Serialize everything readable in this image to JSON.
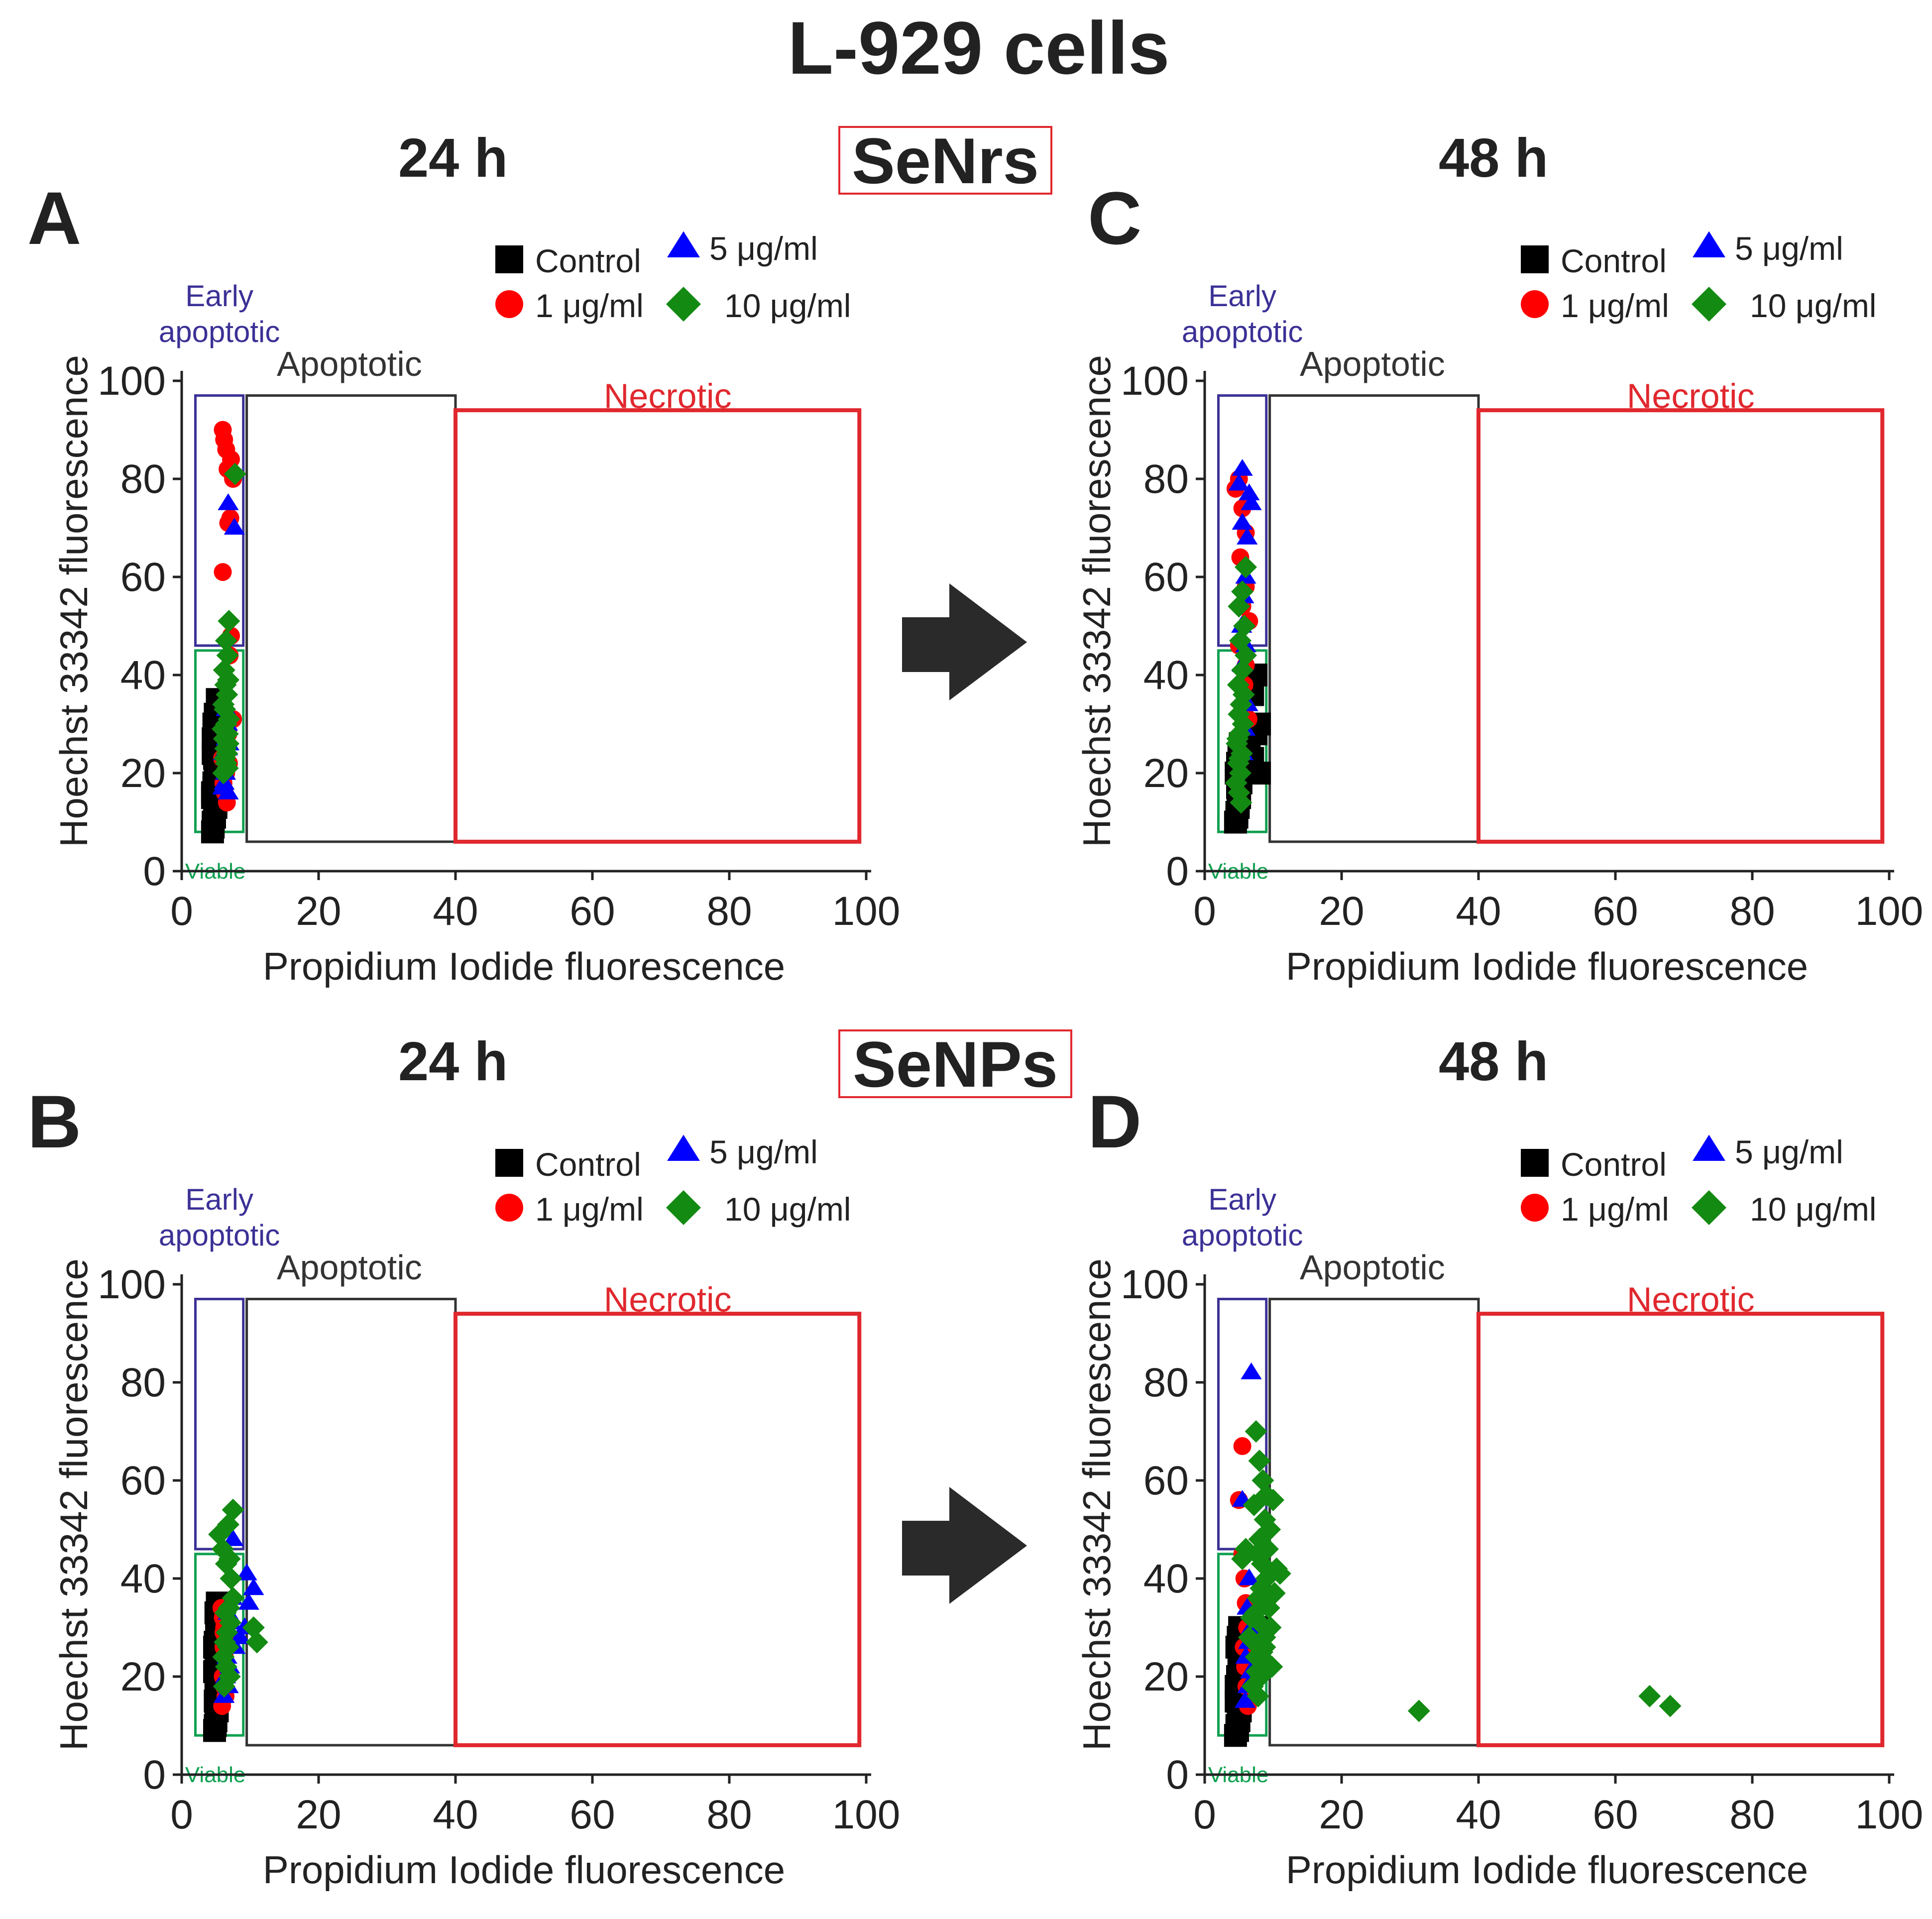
{
  "figure": {
    "title": "L-929 cells",
    "time_labels": [
      "24 h",
      "48 h"
    ],
    "group_labels": [
      "SeNrs",
      "SeNPs"
    ],
    "group_box_color": "#e0282e"
  },
  "legend": {
    "items": [
      {
        "label": "Control",
        "marker": "square",
        "color": "#000000"
      },
      {
        "label": "5 μg/ml",
        "marker": "triangle",
        "color": "#0000ff"
      },
      {
        "label": "1 μg/ml",
        "marker": "circle",
        "color": "#ff0000"
      },
      {
        "label": "10 μg/ml",
        "marker": "diamond",
        "color": "#138a12"
      }
    ]
  },
  "gates": {
    "early_apoptotic": {
      "label_line1": "Early",
      "label_line2": "apoptotic",
      "color": "#3b3196",
      "x": [
        2,
        9
      ],
      "y": [
        46,
        97
      ]
    },
    "viable": {
      "label": "Viable",
      "color": "#10a050",
      "x": [
        2,
        9
      ],
      "y": [
        8,
        45
      ]
    },
    "apoptotic": {
      "label": "Apoptotic",
      "color": "#333333",
      "x": [
        9.5,
        40
      ],
      "y": [
        6,
        97
      ]
    },
    "necrotic": {
      "label": "Necrotic",
      "color": "#e0282e",
      "x": [
        40,
        99
      ],
      "y": [
        6,
        94
      ]
    }
  },
  "chart_data": [
    {
      "panel": "A",
      "type": "scatter",
      "time": "24 h",
      "group": "SeNrs",
      "xlabel": "Propidium Iodide  fluorescence",
      "ylabel": "Hoechst 33342  fluorescence",
      "xlim": [
        0,
        100
      ],
      "ylim": [
        0,
        100
      ],
      "xticks": [
        0,
        20,
        40,
        60,
        80,
        100
      ],
      "yticks": [
        0,
        20,
        40,
        60,
        80,
        100
      ],
      "series": [
        {
          "name": "Control",
          "x": [
            4.5,
            4.6,
            4.8,
            5.0,
            4.5,
            4.7,
            4.9,
            5.1,
            4.6,
            4.8,
            5.0,
            4.7,
            4.9,
            5.2,
            4.6,
            4.8,
            5.0,
            4.5,
            4.7,
            4.9,
            5.1,
            4.8,
            5.0,
            4.6,
            4.9
          ],
          "y": [
            8,
            10,
            12,
            14,
            16,
            18,
            20,
            22,
            24,
            26,
            28,
            30,
            32,
            35,
            9,
            11,
            13,
            15,
            17,
            19,
            21,
            23,
            25,
            27,
            29
          ]
        },
        {
          "name": "1 μg/ml",
          "x": [
            6.0,
            6.2,
            6.5,
            6.7,
            7.2,
            7.5,
            7.1,
            6.0,
            6.8,
            7.2,
            7.0,
            7.5,
            6.4,
            6.9,
            6.5,
            6.1,
            6.3,
            6.6,
            6.8,
            5.9
          ],
          "y": [
            90,
            88,
            86,
            82,
            84,
            80,
            72,
            61,
            71,
            48,
            44,
            31,
            25,
            22,
            20,
            18,
            16,
            14,
            28,
            23
          ]
        },
        {
          "name": "5 μg/ml",
          "x": [
            6.8,
            7.7,
            6.5,
            6.7,
            6.3,
            6.9,
            6.1,
            6.6,
            6.4,
            6.2,
            6.8,
            6.5,
            6.7,
            6.0
          ],
          "y": [
            75,
            70,
            33,
            30,
            28,
            26,
            24,
            22,
            20,
            18,
            16,
            27,
            25,
            17
          ]
        },
        {
          "name": "10 μg/ml",
          "x": [
            7.8,
            6.9,
            6.5,
            6.7,
            6.2,
            6.8,
            6.4,
            6.6,
            6.1,
            6.3,
            6.9,
            6.5,
            6.0,
            6.7,
            6.2,
            6.8,
            6.4,
            6.6,
            6.3,
            6.5,
            6.7,
            6.1
          ],
          "y": [
            81,
            51,
            47,
            44,
            41,
            39,
            38,
            36,
            34,
            33,
            31,
            30,
            29,
            28,
            27,
            26,
            25,
            24,
            23,
            22,
            21,
            20
          ]
        }
      ]
    },
    {
      "panel": "B",
      "type": "scatter",
      "time": "24 h",
      "group": "SeNPs",
      "xlabel": "Propidium Iodide  fluorescence",
      "ylabel": "Hoechst 33342  fluorescence",
      "xlim": [
        0,
        100
      ],
      "ylim": [
        0,
        100
      ],
      "xticks": [
        0,
        20,
        40,
        60,
        80,
        100
      ],
      "yticks": [
        0,
        20,
        40,
        60,
        80,
        100
      ],
      "series": [
        {
          "name": "Control",
          "x": [
            4.8,
            5.0,
            5.2,
            4.9,
            5.1,
            5.3,
            4.8,
            5.0,
            5.2,
            4.9,
            5.1,
            5.3,
            5.0,
            5.2,
            4.9,
            5.1,
            5.0,
            5.2,
            4.8,
            5.1
          ],
          "y": [
            9,
            11,
            13,
            15,
            17,
            19,
            21,
            23,
            25,
            27,
            29,
            31,
            33,
            35,
            10,
            14,
            18,
            22,
            26,
            30
          ]
        },
        {
          "name": "1 μg/ml",
          "x": [
            5.8,
            6.0,
            6.2,
            6.4,
            6.1,
            6.3,
            6.5,
            6.0,
            6.2,
            6.4,
            5.9,
            6.1
          ],
          "y": [
            34,
            32,
            30,
            28,
            26,
            24,
            22,
            20,
            18,
            16,
            14,
            29
          ]
        },
        {
          "name": "5 μg/ml",
          "x": [
            7.5,
            9.5,
            10.5,
            9.8,
            9.2,
            8.5,
            7.8,
            6.8,
            7.2,
            6.6,
            7.0,
            6.4,
            6.8,
            7.4,
            6.2
          ],
          "y": [
            48,
            41,
            38,
            35,
            30,
            28,
            26,
            33,
            31,
            24,
            22,
            20,
            18,
            36,
            16
          ]
        },
        {
          "name": "10 μg/ml",
          "x": [
            7.5,
            6.8,
            5.5,
            6.0,
            7.0,
            6.5,
            7.2,
            10.5,
            11.0,
            7.5,
            6.9,
            6.4,
            7.1,
            6.6,
            6.3,
            6.8,
            6.1,
            6.5,
            7.0,
            6.2
          ],
          "y": [
            54,
            51,
            49,
            46,
            44,
            43,
            40,
            30,
            27,
            36,
            34,
            33,
            31,
            29,
            27,
            26,
            24,
            22,
            20,
            18
          ]
        }
      ]
    },
    {
      "panel": "C",
      "type": "scatter",
      "time": "48 h",
      "group": "SeNrs",
      "xlabel": "Propidium Iodide  fluorescence",
      "ylabel": "Hoechst 33342  fluorescence",
      "xlim": [
        0,
        100
      ],
      "ylim": [
        0,
        100
      ],
      "xticks": [
        0,
        20,
        40,
        60,
        80,
        100
      ],
      "yticks": [
        0,
        20,
        40,
        60,
        80,
        100
      ],
      "series": [
        {
          "name": "Control",
          "x": [
            7.5,
            8.0,
            8.0,
            7.0,
            7.5,
            4.5,
            4.7,
            4.9,
            5.1,
            5.3,
            4.6,
            4.8,
            5.0,
            5.2,
            4.7,
            4.9,
            5.1,
            4.8,
            5.0,
            6.5,
            7.0
          ],
          "y": [
            40,
            30,
            20,
            36,
            28,
            10,
            12,
            14,
            16,
            18,
            20,
            22,
            24,
            26,
            11,
            13,
            15,
            17,
            19,
            25,
            23
          ]
        },
        {
          "name": "1 μg/ml",
          "x": [
            4.5,
            5.0,
            5.5,
            6.0,
            5.2,
            6.0,
            5.5,
            6.5,
            5.0,
            6.0,
            5.8,
            6.4
          ],
          "y": [
            78,
            80,
            74,
            69,
            64,
            58,
            54,
            51,
            46,
            42,
            38,
            31
          ]
        },
        {
          "name": "5 μg/ml",
          "x": [
            5.5,
            5.0,
            6.5,
            6.8,
            5.5,
            6.2,
            6.0,
            5.7,
            5.4,
            6.0,
            5.5,
            6.3,
            5.9,
            5.6
          ],
          "y": [
            82,
            79,
            77,
            75,
            71,
            68,
            60,
            56,
            50,
            46,
            42,
            34,
            29,
            24
          ]
        },
        {
          "name": "10 μg/ml",
          "x": [
            6.0,
            5.5,
            5.0,
            5.8,
            5.2,
            6.0,
            5.5,
            4.9,
            5.7,
            5.3,
            5.0,
            5.6,
            5.1,
            4.7,
            5.4,
            4.9,
            5.2,
            4.6,
            5.0,
            5.3,
            4.8,
            5.1
          ],
          "y": [
            62,
            57,
            54,
            50,
            47,
            44,
            41,
            38,
            36,
            34,
            32,
            30,
            28,
            26,
            24,
            22,
            20,
            18,
            16,
            14,
            27,
            23
          ]
        }
      ]
    },
    {
      "panel": "D",
      "type": "scatter",
      "time": "48 h",
      "group": "SeNPs",
      "xlabel": "Propidium Iodide  fluorescence",
      "ylabel": "Hoechst 33342  fluorescence",
      "xlim": [
        0,
        100
      ],
      "ylim": [
        0,
        100
      ],
      "xticks": [
        0,
        20,
        40,
        60,
        80,
        100
      ],
      "yticks": [
        0,
        20,
        40,
        60,
        80,
        100
      ],
      "series": [
        {
          "name": "Control",
          "x": [
            4.5,
            4.7,
            4.9,
            5.1,
            5.3,
            4.6,
            4.8,
            5.0,
            5.2,
            4.7,
            4.9,
            5.1,
            4.8,
            5.0,
            5.2,
            4.6,
            4.9,
            5.1,
            8.0,
            7.5
          ],
          "y": [
            8,
            10,
            12,
            14,
            16,
            18,
            20,
            22,
            24,
            26,
            28,
            30,
            9,
            11,
            13,
            15,
            17,
            19,
            30,
            25
          ]
        },
        {
          "name": "1 μg/ml",
          "x": [
            5.5,
            5.0,
            5.5,
            5.8,
            6.0,
            6.2,
            5.7,
            5.9,
            6.1,
            6.3
          ],
          "y": [
            67,
            56,
            45,
            40,
            35,
            30,
            26,
            22,
            18,
            14
          ]
        },
        {
          "name": "5 μg/ml",
          "x": [
            6.8,
            5.5,
            6.0,
            6.5,
            6.2,
            6.8,
            6.4,
            6.0,
            6.7,
            6.3,
            5.9
          ],
          "y": [
            82,
            56,
            45,
            40,
            34,
            30,
            27,
            24,
            21,
            18,
            15
          ]
        },
        {
          "name": "10 μg/ml",
          "x": [
            31.3,
            65.0,
            68.0,
            7.5,
            8.0,
            8.5,
            9.0,
            7.2,
            8.8,
            10.0,
            9.5,
            8.0,
            9.2,
            7.6,
            8.4,
            10.5,
            11.0,
            9.0,
            8.2,
            7.8,
            8.6,
            9.4,
            10.2,
            7.4,
            8.0,
            9.6,
            8.8,
            7.2,
            8.4,
            9.0,
            7.6,
            8.2,
            7.0,
            7.8,
            6.5,
            6.8,
            9.8,
            7.5,
            8.8,
            6.0,
            5.5
          ],
          "y": [
            13,
            16,
            14,
            70,
            64,
            60,
            57,
            55,
            52,
            56,
            50,
            48,
            46,
            45,
            43,
            42,
            41,
            40,
            38,
            36,
            35,
            34,
            37,
            33,
            31,
            30,
            28,
            27,
            25,
            23,
            21,
            20,
            18,
            16,
            28,
            32,
            22,
            24,
            26,
            46,
            44
          ]
        }
      ]
    }
  ]
}
